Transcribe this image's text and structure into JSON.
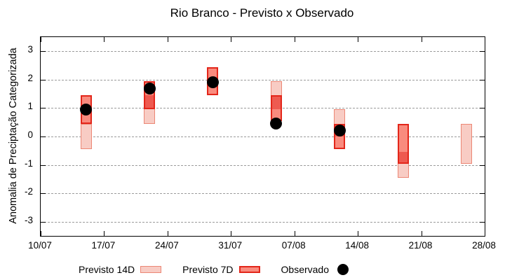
{
  "title": "Rio Branco - Previsto x Observado",
  "chart_data": {
    "type": "candlestick-forecast",
    "title": "Rio Branco - Previsto x Observado",
    "ylabel": "Anomalia de Preciptação Categorizada",
    "ylim": [
      -3.5,
      3.5
    ],
    "yticks": [
      3,
      2,
      1,
      0,
      -1,
      -2,
      -3
    ],
    "xtick_labels": [
      "10/07",
      "17/07",
      "24/07",
      "31/07",
      "07/08",
      "14/08",
      "21/08",
      "28/08"
    ],
    "x_range_days": 49,
    "grid": true,
    "legend": [
      {
        "label": "Previsto 14D",
        "type": "box"
      },
      {
        "label": "Previsto 7D",
        "type": "box"
      },
      {
        "label": "Observado",
        "type": "point"
      }
    ],
    "clusters": [
      {
        "date": "15/07",
        "day": 5,
        "previsto_14d": [
          -0.45,
          0.45
        ],
        "previsto_7d": [
          0.45,
          1.45
        ],
        "observado": 0.95
      },
      {
        "date": "22/07",
        "day": 12,
        "previsto_14d": [
          0.45,
          1.45
        ],
        "previsto_7d": [
          0.95,
          1.95
        ],
        "observado": 1.7
      },
      {
        "date": "29/07",
        "day": 19,
        "previsto_14d": null,
        "previsto_7d": [
          1.45,
          2.45
        ],
        "observado": 1.9
      },
      {
        "date": "05/08",
        "day": 26,
        "previsto_14d": [
          0.95,
          1.95
        ],
        "previsto_7d": [
          0.55,
          1.45
        ],
        "observado": 0.45
      },
      {
        "date": "12/08",
        "day": 33,
        "previsto_14d": [
          0.0,
          0.95
        ],
        "previsto_7d": [
          -0.45,
          0.45
        ],
        "observado": 0.2
      },
      {
        "date": "19/08",
        "day": 40,
        "previsto_14d": [
          -1.45,
          -0.55
        ],
        "previsto_7d": [
          -0.95,
          0.45
        ],
        "observado": null
      },
      {
        "date": "26/08",
        "day": 47,
        "previsto_14d": [
          -0.95,
          0.45
        ],
        "previsto_7d": null,
        "observado": null
      }
    ],
    "colors": {
      "fc14_fill": "#f8ccc4",
      "fc14_border": "#ec8775",
      "fc7_fill": "#f98b7e",
      "fc7_border": "#e3261a",
      "overlap_fill": "#ee5a50",
      "observed": "#000000",
      "grid": "#9b9b9b",
      "axis": "#000000"
    }
  }
}
